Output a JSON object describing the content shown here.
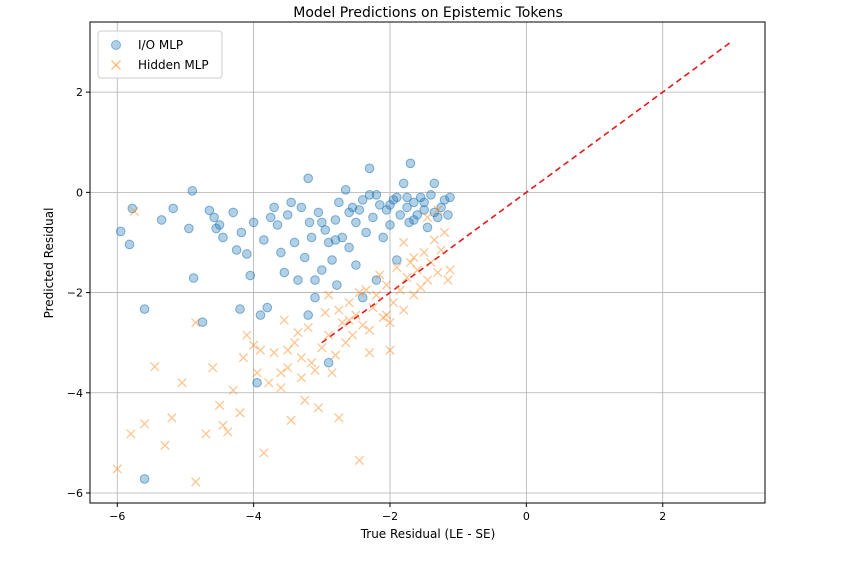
{
  "chart_data": {
    "type": "scatter",
    "title": "Model Predictions on Epistemic Tokens",
    "xlabel": "True Residual (LE - SE)",
    "ylabel": "Predicted Residual",
    "xlim": [
      -6.4,
      3.5
    ],
    "ylim": [
      -6.2,
      3.4
    ],
    "xticks": [
      -6,
      -4,
      -2,
      0,
      2
    ],
    "yticks": [
      -6,
      -4,
      -2,
      0,
      2
    ],
    "xtick_labels": [
      "−6",
      "−4",
      "−2",
      "0",
      "2"
    ],
    "ytick_labels": [
      "−6",
      "−4",
      "−2",
      "0",
      "2"
    ],
    "grid": true,
    "legend_position": "top-left",
    "reference_line": {
      "x": [
        -3,
        3
      ],
      "y": [
        -3,
        3
      ],
      "color": "#e31a1c",
      "style": "dashed"
    },
    "series": [
      {
        "name": "I/O MLP",
        "marker": "circle",
        "color": "#1f77b4",
        "points": [
          [
            -5.95,
            -0.78
          ],
          [
            -5.82,
            -1.04
          ],
          [
            -5.78,
            -0.32
          ],
          [
            -5.6,
            -2.33
          ],
          [
            -5.35,
            -0.55
          ],
          [
            -5.18,
            -0.32
          ],
          [
            -4.95,
            -0.72
          ],
          [
            -4.9,
            0.03
          ],
          [
            -4.88,
            -1.71
          ],
          [
            -4.75,
            -2.59
          ],
          [
            -4.65,
            -0.36
          ],
          [
            -4.58,
            -0.5
          ],
          [
            -4.55,
            -0.72
          ],
          [
            -4.5,
            -0.65
          ],
          [
            -4.45,
            -0.9
          ],
          [
            -4.3,
            -0.4
          ],
          [
            -4.25,
            -1.15
          ],
          [
            -4.2,
            -2.33
          ],
          [
            -4.18,
            -0.8
          ],
          [
            -4.1,
            -1.23
          ],
          [
            -4.05,
            -1.66
          ],
          [
            -4.0,
            -0.6
          ],
          [
            -3.95,
            -3.8
          ],
          [
            -3.9,
            -2.45
          ],
          [
            -3.85,
            -0.95
          ],
          [
            -3.8,
            -2.3
          ],
          [
            -3.75,
            -0.5
          ],
          [
            -3.7,
            -0.3
          ],
          [
            -3.65,
            -0.65
          ],
          [
            -3.6,
            -1.2
          ],
          [
            -3.55,
            -1.6
          ],
          [
            -3.5,
            -0.45
          ],
          [
            -3.45,
            -0.2
          ],
          [
            -3.4,
            -1.0
          ],
          [
            -3.35,
            -1.75
          ],
          [
            -3.3,
            -0.3
          ],
          [
            -3.25,
            -1.3
          ],
          [
            -3.2,
            0.28
          ],
          [
            -3.18,
            -0.6
          ],
          [
            -3.15,
            -0.9
          ],
          [
            -3.1,
            -2.1
          ],
          [
            -3.05,
            -0.4
          ],
          [
            -3.0,
            -1.55
          ],
          [
            -2.95,
            -0.75
          ],
          [
            -2.9,
            -1.0
          ],
          [
            -2.85,
            -1.35
          ],
          [
            -2.8,
            -0.55
          ],
          [
            -2.78,
            -1.85
          ],
          [
            -2.75,
            -0.2
          ],
          [
            -2.7,
            -0.9
          ],
          [
            -2.65,
            0.05
          ],
          [
            -2.6,
            -1.1
          ],
          [
            -2.55,
            -0.3
          ],
          [
            -2.5,
            -0.6
          ],
          [
            -2.45,
            -0.35
          ],
          [
            -2.4,
            -0.15
          ],
          [
            -2.35,
            -0.8
          ],
          [
            -2.3,
            0.48
          ],
          [
            -2.25,
            -0.5
          ],
          [
            -2.2,
            -0.05
          ],
          [
            -2.15,
            -0.25
          ],
          [
            -2.1,
            -0.9
          ],
          [
            -2.05,
            -0.35
          ],
          [
            -2.0,
            -0.65
          ],
          [
            -1.95,
            -0.15
          ],
          [
            -1.9,
            -0.1
          ],
          [
            -1.85,
            -0.45
          ],
          [
            -1.8,
            0.18
          ],
          [
            -1.75,
            -0.3
          ],
          [
            -1.72,
            -0.6
          ],
          [
            -1.7,
            0.58
          ],
          [
            -1.65,
            -0.2
          ],
          [
            -1.6,
            -0.45
          ],
          [
            -1.55,
            -0.1
          ],
          [
            -1.5,
            -0.35
          ],
          [
            -1.45,
            -0.7
          ],
          [
            -1.4,
            -0.05
          ],
          [
            -1.35,
            0.18
          ],
          [
            -1.3,
            -0.5
          ],
          [
            -1.25,
            -0.3
          ],
          [
            -1.2,
            -0.15
          ],
          [
            -1.15,
            -0.45
          ],
          [
            -1.12,
            -0.1
          ],
          [
            -2.9,
            -3.4
          ],
          [
            -3.2,
            -2.45
          ],
          [
            -2.4,
            -2.1
          ],
          [
            -2.2,
            -1.75
          ],
          [
            -1.9,
            -1.35
          ],
          [
            -3.1,
            -1.75
          ],
          [
            -2.5,
            -1.45
          ],
          [
            -5.6,
            -5.72
          ],
          [
            -2.3,
            -0.05
          ],
          [
            -2.0,
            -0.25
          ],
          [
            -1.75,
            -0.1
          ],
          [
            -1.5,
            -0.2
          ],
          [
            -2.6,
            -0.4
          ],
          [
            -2.8,
            -0.95
          ],
          [
            -3.0,
            -0.6
          ],
          [
            -1.65,
            -0.55
          ],
          [
            -1.35,
            -0.4
          ]
        ]
      },
      {
        "name": "Hidden MLP",
        "marker": "x",
        "color": "#ff7f0e",
        "points": [
          [
            -6.0,
            -5.52
          ],
          [
            -5.8,
            -4.82
          ],
          [
            -5.75,
            -0.38
          ],
          [
            -5.6,
            -4.62
          ],
          [
            -5.45,
            -3.48
          ],
          [
            -5.3,
            -5.05
          ],
          [
            -5.2,
            -4.5
          ],
          [
            -5.05,
            -3.8
          ],
          [
            -4.85,
            -5.78
          ],
          [
            -4.85,
            -2.6
          ],
          [
            -4.7,
            -4.82
          ],
          [
            -4.6,
            -3.5
          ],
          [
            -4.5,
            -4.25
          ],
          [
            -4.45,
            -4.65
          ],
          [
            -4.38,
            -4.78
          ],
          [
            -4.3,
            -3.95
          ],
          [
            -4.2,
            -4.4
          ],
          [
            -4.15,
            -3.3
          ],
          [
            -4.1,
            -2.85
          ],
          [
            -4.0,
            -3.05
          ],
          [
            -3.95,
            -3.6
          ],
          [
            -3.85,
            -5.2
          ],
          [
            -3.78,
            -3.8
          ],
          [
            -3.7,
            -3.2
          ],
          [
            -3.6,
            -3.9
          ],
          [
            -3.55,
            -2.55
          ],
          [
            -3.5,
            -3.5
          ],
          [
            -3.45,
            -4.55
          ],
          [
            -3.4,
            -3.0
          ],
          [
            -3.35,
            -2.8
          ],
          [
            -3.3,
            -3.3
          ],
          [
            -3.25,
            -4.15
          ],
          [
            -3.2,
            -2.7
          ],
          [
            -3.1,
            -3.55
          ],
          [
            -3.05,
            -4.3
          ],
          [
            -3.0,
            -3.1
          ],
          [
            -2.95,
            -2.4
          ],
          [
            -2.9,
            -2.85
          ],
          [
            -2.85,
            -3.6
          ],
          [
            -2.8,
            -3.25
          ],
          [
            -2.75,
            -4.5
          ],
          [
            -2.7,
            -2.6
          ],
          [
            -2.65,
            -3.0
          ],
          [
            -2.6,
            -2.2
          ],
          [
            -2.55,
            -2.85
          ],
          [
            -2.5,
            -2.45
          ],
          [
            -2.45,
            -5.35
          ],
          [
            -2.4,
            -2.65
          ],
          [
            -2.35,
            -1.95
          ],
          [
            -2.3,
            -3.2
          ],
          [
            -2.25,
            -2.3
          ],
          [
            -2.2,
            -2.05
          ],
          [
            -2.15,
            -1.65
          ],
          [
            -2.1,
            -2.5
          ],
          [
            -2.05,
            -1.85
          ],
          [
            -2.0,
            -3.15
          ],
          [
            -1.95,
            -2.2
          ],
          [
            -1.9,
            -1.5
          ],
          [
            -1.85,
            -1.95
          ],
          [
            -1.8,
            -2.35
          ],
          [
            -1.75,
            -1.7
          ],
          [
            -1.7,
            -1.4
          ],
          [
            -1.65,
            -2.05
          ],
          [
            -1.6,
            -1.55
          ],
          [
            -1.55,
            -1.9
          ],
          [
            -1.5,
            -1.2
          ],
          [
            -1.45,
            -1.75
          ],
          [
            -1.4,
            -1.4
          ],
          [
            -1.35,
            -0.95
          ],
          [
            -1.3,
            -1.6
          ],
          [
            -1.25,
            -1.15
          ],
          [
            -1.2,
            -0.8
          ],
          [
            -1.15,
            -1.75
          ],
          [
            -1.12,
            -1.55
          ],
          [
            -2.0,
            -2.6
          ],
          [
            -2.3,
            -2.75
          ],
          [
            -2.6,
            -2.55
          ],
          [
            -2.75,
            -2.35
          ],
          [
            -3.15,
            -3.4
          ],
          [
            -3.6,
            -3.6
          ],
          [
            -3.9,
            -3.15
          ],
          [
            -2.45,
            -2.0
          ],
          [
            -1.65,
            -1.3
          ],
          [
            -1.8,
            -1.0
          ],
          [
            -2.05,
            -2.45
          ],
          [
            -2.9,
            -2.05
          ],
          [
            -3.3,
            -3.7
          ],
          [
            -3.5,
            -3.15
          ],
          [
            -1.45,
            -0.5
          ],
          [
            -1.3,
            -0.35
          ]
        ]
      }
    ]
  }
}
